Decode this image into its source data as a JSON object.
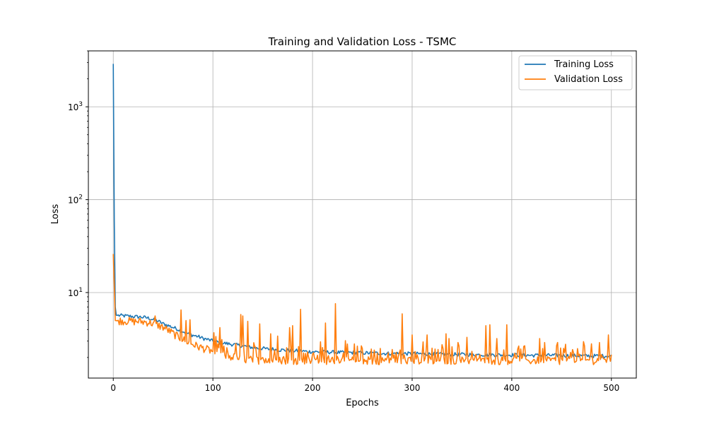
{
  "chart_data": {
    "type": "line",
    "title": "Training and Validation Loss - TSMC",
    "xlabel": "Epochs",
    "ylabel": "Loss",
    "yscale": "log",
    "xlim": [
      -25,
      525
    ],
    "ylim": [
      1.2,
      4000
    ],
    "grid": true,
    "legend_position": "top-right",
    "x_ticks": [
      0,
      100,
      200,
      300,
      400,
      500
    ],
    "x_tick_labels": [
      "0",
      "100",
      "200",
      "300",
      "400",
      "500"
    ],
    "y_ticks": [
      10,
      100,
      1000
    ],
    "y_tick_labels": [
      {
        "base": "10",
        "exp": "1"
      },
      {
        "base": "10",
        "exp": "2"
      },
      {
        "base": "10",
        "exp": "3"
      }
    ],
    "series": [
      {
        "name": "Training Loss",
        "color": "#1f77b4",
        "points": [
          [
            0,
            2900
          ],
          [
            1,
            60
          ],
          [
            2,
            7
          ],
          [
            3,
            5.7
          ],
          [
            5,
            5.65
          ],
          [
            10,
            5.6
          ],
          [
            15,
            5.55
          ],
          [
            20,
            5.5
          ],
          [
            25,
            5.45
          ],
          [
            30,
            5.4
          ],
          [
            35,
            5.3
          ],
          [
            40,
            5.1
          ],
          [
            45,
            4.9
          ],
          [
            50,
            4.6
          ],
          [
            55,
            4.4
          ],
          [
            60,
            4.2
          ],
          [
            65,
            4.0
          ],
          [
            70,
            3.8
          ],
          [
            75,
            3.6
          ],
          [
            80,
            3.45
          ],
          [
            85,
            3.35
          ],
          [
            90,
            3.2
          ],
          [
            95,
            3.1
          ],
          [
            100,
            3.0
          ],
          [
            105,
            2.9
          ],
          [
            110,
            2.85
          ],
          [
            115,
            2.8
          ],
          [
            120,
            2.75
          ],
          [
            125,
            2.7
          ],
          [
            130,
            2.65
          ],
          [
            135,
            2.6
          ],
          [
            140,
            2.55
          ],
          [
            145,
            2.5
          ],
          [
            150,
            2.5
          ],
          [
            155,
            2.45
          ],
          [
            160,
            2.45
          ],
          [
            165,
            2.4
          ],
          [
            170,
            2.4
          ],
          [
            175,
            2.38
          ],
          [
            180,
            2.35
          ],
          [
            185,
            2.35
          ],
          [
            190,
            2.33
          ],
          [
            195,
            2.3
          ],
          [
            200,
            2.3
          ],
          [
            210,
            2.28
          ],
          [
            220,
            2.27
          ],
          [
            230,
            2.25
          ],
          [
            240,
            2.25
          ],
          [
            250,
            2.23
          ],
          [
            260,
            2.22
          ],
          [
            270,
            2.2
          ],
          [
            280,
            2.2
          ],
          [
            290,
            2.2
          ],
          [
            300,
            2.18
          ],
          [
            310,
            2.18
          ],
          [
            320,
            2.17
          ],
          [
            330,
            2.16
          ],
          [
            340,
            2.15
          ],
          [
            350,
            2.15
          ],
          [
            360,
            2.14
          ],
          [
            370,
            2.13
          ],
          [
            380,
            2.13
          ],
          [
            390,
            2.12
          ],
          [
            400,
            2.12
          ],
          [
            410,
            2.11
          ],
          [
            420,
            2.1
          ],
          [
            430,
            2.1
          ],
          [
            440,
            2.1
          ],
          [
            450,
            2.09
          ],
          [
            460,
            2.08
          ],
          [
            470,
            2.08
          ],
          [
            480,
            2.07
          ],
          [
            490,
            2.07
          ],
          [
            500,
            2.06
          ]
        ]
      },
      {
        "name": "Validation Loss",
        "color": "#ff7f0e",
        "points": [
          [
            0,
            26
          ],
          [
            1,
            12
          ],
          [
            2,
            5.0
          ],
          [
            5,
            4.95
          ],
          [
            10,
            4.9
          ],
          [
            15,
            4.9
          ],
          [
            20,
            4.85
          ],
          [
            25,
            4.85
          ],
          [
            30,
            4.8
          ],
          [
            35,
            4.75
          ],
          [
            40,
            4.6
          ],
          [
            45,
            4.4
          ],
          [
            50,
            4.2
          ],
          [
            55,
            3.9
          ],
          [
            60,
            3.6
          ],
          [
            65,
            3.3
          ],
          [
            70,
            3.1
          ],
          [
            75,
            2.9
          ],
          [
            80,
            2.75
          ],
          [
            85,
            2.6
          ],
          [
            90,
            2.5
          ],
          [
            95,
            2.4
          ],
          [
            100,
            2.3
          ],
          [
            105,
            2.2
          ],
          [
            110,
            2.15
          ],
          [
            115,
            2.05
          ],
          [
            120,
            2.0
          ],
          [
            125,
            1.95
          ],
          [
            130,
            1.9
          ],
          [
            140,
            1.87
          ],
          [
            150,
            1.85
          ],
          [
            160,
            1.85
          ],
          [
            170,
            1.85
          ],
          [
            180,
            1.85
          ],
          [
            190,
            1.84
          ],
          [
            200,
            1.84
          ],
          [
            210,
            1.84
          ],
          [
            220,
            1.84
          ],
          [
            230,
            1.84
          ],
          [
            240,
            1.84
          ],
          [
            250,
            1.84
          ],
          [
            260,
            1.84
          ],
          [
            270,
            1.84
          ],
          [
            280,
            1.84
          ],
          [
            290,
            1.84
          ],
          [
            300,
            1.84
          ],
          [
            310,
            1.84
          ],
          [
            320,
            1.84
          ],
          [
            330,
            1.84
          ],
          [
            340,
            1.84
          ],
          [
            350,
            1.84
          ],
          [
            360,
            1.84
          ],
          [
            370,
            1.84
          ],
          [
            380,
            1.84
          ],
          [
            390,
            1.84
          ],
          [
            400,
            1.84
          ],
          [
            410,
            1.84
          ],
          [
            420,
            1.84
          ],
          [
            430,
            1.84
          ],
          [
            440,
            1.84
          ],
          [
            450,
            1.84
          ],
          [
            460,
            1.84
          ],
          [
            470,
            1.84
          ],
          [
            480,
            1.84
          ],
          [
            490,
            1.84
          ],
          [
            500,
            1.84
          ]
        ],
        "spikes": [
          [
            42,
            5.6
          ],
          [
            68,
            6.5
          ],
          [
            73,
            5.0
          ],
          [
            77,
            5.1
          ],
          [
            107,
            4.2
          ],
          [
            128,
            5.8
          ],
          [
            130,
            5.6
          ],
          [
            135,
            4.9
          ],
          [
            147,
            4.6
          ],
          [
            158,
            3.6
          ],
          [
            165,
            3.4
          ],
          [
            177,
            4.2
          ],
          [
            180,
            4.4
          ],
          [
            188,
            6.6
          ],
          [
            213,
            4.7
          ],
          [
            223,
            7.6
          ],
          [
            290,
            5.9
          ],
          [
            300,
            3.5
          ],
          [
            315,
            3.5
          ],
          [
            334,
            3.6
          ],
          [
            337,
            3.2
          ],
          [
            346,
            2.9
          ],
          [
            355,
            3.3
          ],
          [
            374,
            4.4
          ],
          [
            378,
            4.5
          ],
          [
            385,
            3.2
          ],
          [
            395,
            4.5
          ],
          [
            428,
            3.2
          ],
          [
            433,
            2.9
          ],
          [
            446,
            2.9
          ],
          [
            488,
            2.9
          ],
          [
            497,
            3.5
          ]
        ]
      }
    ]
  }
}
